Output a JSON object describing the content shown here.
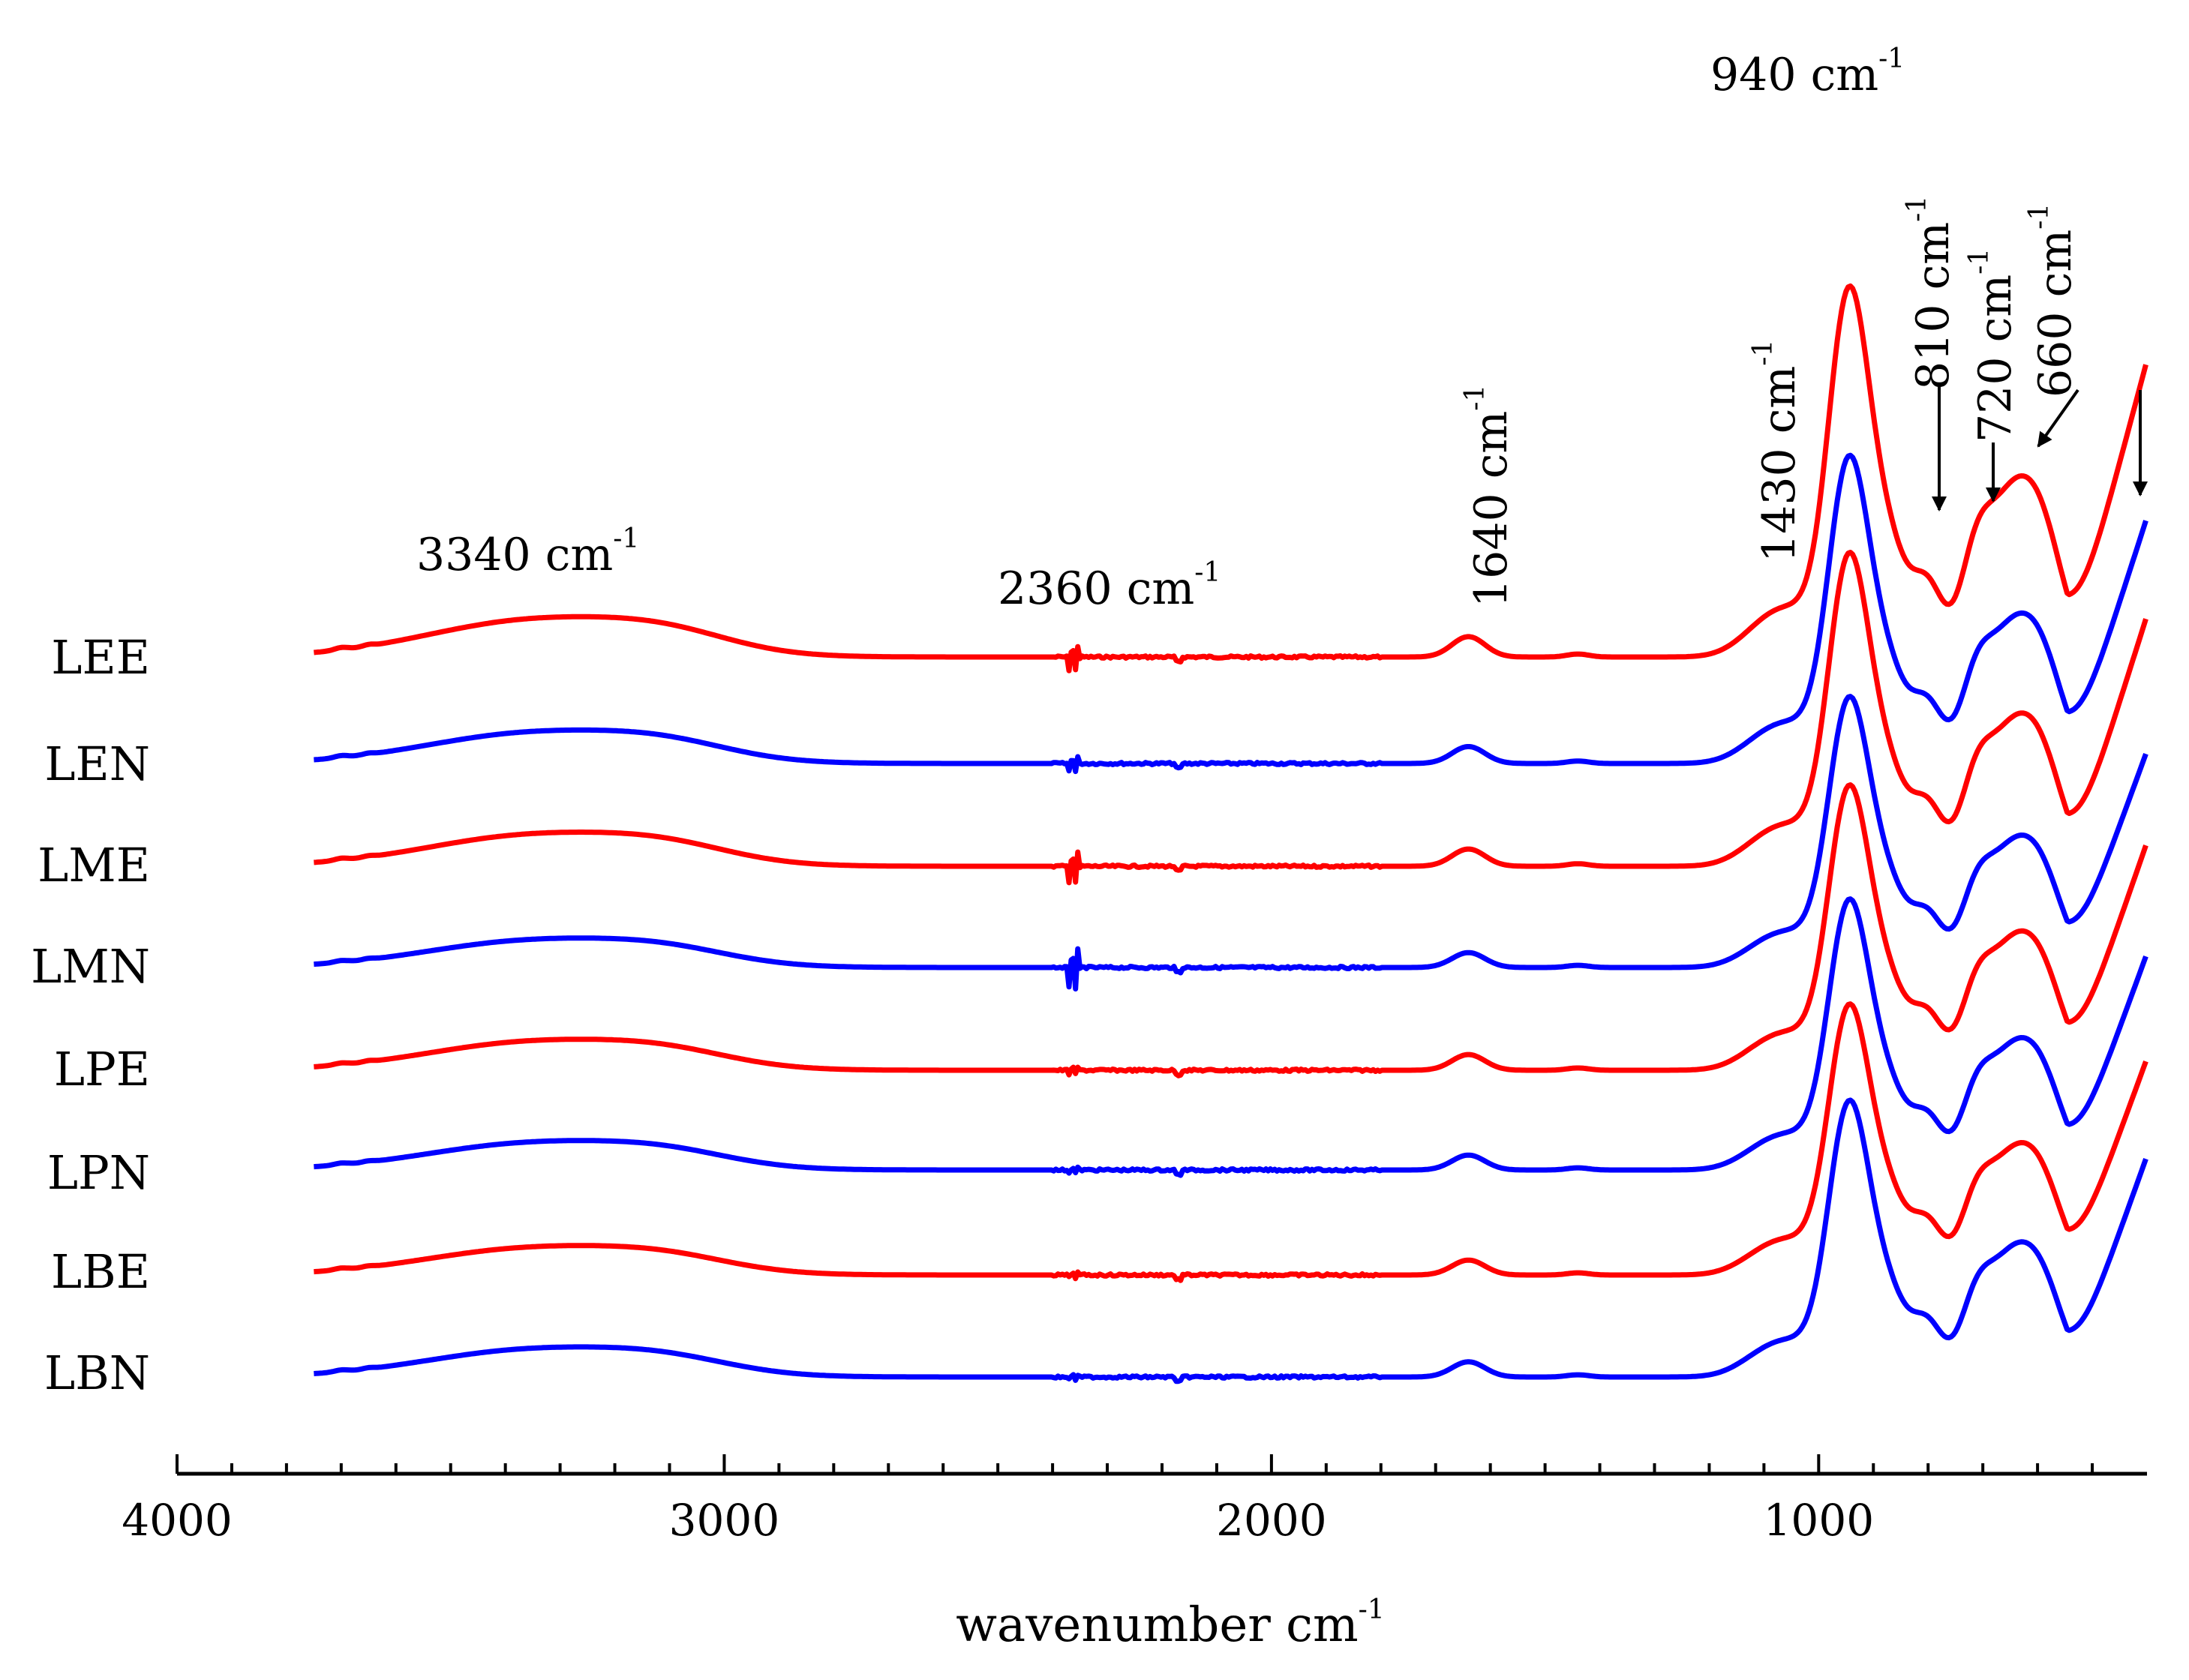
{
  "chart_data": {
    "type": "line",
    "title": "",
    "xlabel": "wavenumber cm",
    "xlabel_sup": "-1",
    "ylabel": "",
    "xlim": [
      4000,
      400
    ],
    "x_reversed": true,
    "x_ticks": [
      4000,
      3000,
      2000,
      1000
    ],
    "x_tick_labels": [
      "4000",
      "3000",
      "2000",
      "1000"
    ],
    "yaxis_visible": false,
    "series": [
      {
        "name": "LEE",
        "color": "#ff0000",
        "scale": 1.3,
        "noise2360": 1.0
      },
      {
        "name": "LEN",
        "color": "#0000ff",
        "scale": 1.08,
        "noise2360": 0.6
      },
      {
        "name": "LME",
        "color": "#ff0000",
        "scale": 1.1,
        "noise2360": 1.2
      },
      {
        "name": "LMN",
        "color": "#0000ff",
        "scale": 0.95,
        "noise2360": 1.6
      },
      {
        "name": "LPE",
        "color": "#ff0000",
        "scale": 1.0,
        "noise2360": 0.3
      },
      {
        "name": "LPN",
        "color": "#0000ff",
        "scale": 0.95,
        "noise2360": 0.2
      },
      {
        "name": "LBE",
        "color": "#ff0000",
        "scale": 0.95,
        "noise2360": 0.2
      },
      {
        "name": "LBN",
        "color": "#0000ff",
        "scale": 0.97,
        "noise2360": 0.2
      }
    ],
    "annotations": [
      {
        "text": "3340 cm",
        "sup": "-1",
        "x": 3340
      },
      {
        "text": "2360 cm",
        "sup": "-1",
        "x": 2360
      },
      {
        "text": "1640 cm",
        "sup": "-1",
        "x": 1640,
        "rotated": true
      },
      {
        "text": "1430 cm",
        "sup": "-1",
        "x": 1430,
        "rotated": true
      },
      {
        "text": "940 cm",
        "sup": "-1",
        "x": 940
      },
      {
        "text": "810 cm",
        "sup": "-1",
        "x": 810,
        "rotated": true,
        "arrow": true
      },
      {
        "text": "720 cm",
        "sup": "-1",
        "x": 720,
        "rotated": true,
        "arrow": true
      },
      {
        "text": "660 cm",
        "sup": "-1",
        "x": 660,
        "rotated": true,
        "arrow": true
      }
    ]
  }
}
